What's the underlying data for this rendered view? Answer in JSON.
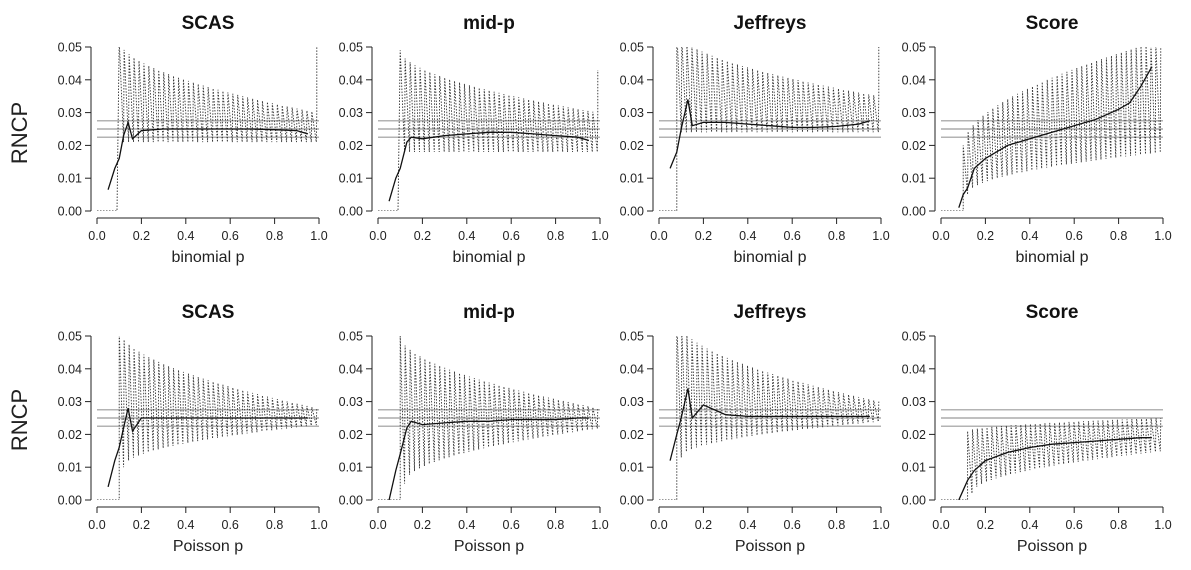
{
  "figure": {
    "ylabel": "RNCP",
    "row_xlabels": [
      "binomial p",
      "Poisson p"
    ]
  },
  "reference_lines": [
    0.0225,
    0.025,
    0.0275
  ],
  "chart_data": [
    {
      "type": "line",
      "row": "binomial",
      "title": "SCAS",
      "xlabel": "binomial p",
      "ylabel": "RNCP",
      "xlim": [
        0,
        1
      ],
      "ylim": [
        0,
        0.05
      ],
      "xticks": [
        "0.0",
        "0.2",
        "0.4",
        "0.6",
        "0.8",
        "1.0"
      ],
      "yticks": [
        "0.00",
        "0.01",
        "0.02",
        "0.03",
        "0.04",
        "0.05"
      ],
      "series": [
        {
          "style": "solid",
          "x": [
            0.05,
            0.08,
            0.1,
            0.12,
            0.14,
            0.16,
            0.2,
            0.3,
            0.4,
            0.5,
            0.6,
            0.7,
            0.8,
            0.9,
            0.95
          ],
          "y": [
            0.0065,
            0.013,
            0.016,
            0.023,
            0.027,
            0.022,
            0.0245,
            0.025,
            0.025,
            0.025,
            0.025,
            0.025,
            0.0248,
            0.0245,
            0.0235
          ]
        },
        {
          "style": "dotted",
          "x_start": 0.1,
          "x_end": 0.99,
          "base_start": 0.021,
          "base_end": 0.021,
          "top_start": 0.052,
          "top_end": 0.03,
          "pre_zero_until": 0.09,
          "end_rise": 0.052
        }
      ]
    },
    {
      "type": "line",
      "row": "binomial",
      "title": "mid-p",
      "xlabel": "binomial p",
      "ylabel": "RNCP",
      "xlim": [
        0,
        1
      ],
      "ylim": [
        0,
        0.05
      ],
      "xticks": [
        "0.0",
        "0.2",
        "0.4",
        "0.6",
        "0.8",
        "1.0"
      ],
      "yticks": [
        "0.00",
        "0.01",
        "0.02",
        "0.03",
        "0.04",
        "0.05"
      ],
      "series": [
        {
          "style": "solid",
          "x": [
            0.05,
            0.08,
            0.1,
            0.13,
            0.15,
            0.2,
            0.3,
            0.4,
            0.5,
            0.6,
            0.7,
            0.8,
            0.9,
            0.95
          ],
          "y": [
            0.003,
            0.01,
            0.013,
            0.021,
            0.0225,
            0.022,
            0.023,
            0.0235,
            0.024,
            0.024,
            0.0235,
            0.023,
            0.0225,
            0.0215
          ]
        },
        {
          "style": "dotted",
          "x_start": 0.1,
          "x_end": 0.99,
          "base_start": 0.018,
          "base_end": 0.018,
          "top_start": 0.049,
          "top_end": 0.03,
          "pre_zero_until": 0.09,
          "end_rise": 0.043
        }
      ]
    },
    {
      "type": "line",
      "row": "binomial",
      "title": "Jeffreys",
      "xlabel": "binomial p",
      "ylabel": "RNCP",
      "xlim": [
        0,
        1
      ],
      "ylim": [
        0,
        0.05
      ],
      "xticks": [
        "0.0",
        "0.2",
        "0.4",
        "0.6",
        "0.8",
        "1.0"
      ],
      "yticks": [
        "0.00",
        "0.01",
        "0.02",
        "0.03",
        "0.04",
        "0.05"
      ],
      "series": [
        {
          "style": "solid",
          "x": [
            0.05,
            0.08,
            0.1,
            0.13,
            0.15,
            0.2,
            0.3,
            0.4,
            0.5,
            0.6,
            0.7,
            0.8,
            0.9,
            0.95
          ],
          "y": [
            0.013,
            0.018,
            0.025,
            0.034,
            0.026,
            0.027,
            0.027,
            0.0265,
            0.026,
            0.0255,
            0.0255,
            0.0258,
            0.0265,
            0.0275
          ]
        },
        {
          "style": "dotted",
          "x_start": 0.08,
          "x_end": 0.99,
          "base_start": 0.024,
          "base_end": 0.024,
          "top_start": 0.055,
          "top_end": 0.035,
          "pre_zero_until": 0.08,
          "end_rise": 0.052
        }
      ]
    },
    {
      "type": "line",
      "row": "binomial",
      "title": "Score",
      "xlabel": "binomial p",
      "ylabel": "RNCP",
      "xlim": [
        0,
        1
      ],
      "ylim": [
        0,
        0.05
      ],
      "xticks": [
        "0.0",
        "0.2",
        "0.4",
        "0.6",
        "0.8",
        "1.0"
      ],
      "yticks": [
        "0.00",
        "0.01",
        "0.02",
        "0.03",
        "0.04",
        "0.05"
      ],
      "series": [
        {
          "style": "solid",
          "x": [
            0.08,
            0.1,
            0.12,
            0.15,
            0.2,
            0.3,
            0.4,
            0.5,
            0.6,
            0.7,
            0.8,
            0.85,
            0.9,
            0.95
          ],
          "y": [
            0.001,
            0.005,
            0.007,
            0.013,
            0.016,
            0.02,
            0.022,
            0.024,
            0.026,
            0.028,
            0.031,
            0.033,
            0.038,
            0.044
          ]
        },
        {
          "style": "dotted",
          "x_start": 0.1,
          "x_end": 0.99,
          "base_start": 0.005,
          "base_end": 0.018,
          "top_start": 0.02,
          "top_end": 0.052,
          "pre_zero_until": 0.1,
          "end_rise": 0.052
        }
      ]
    },
    {
      "type": "line",
      "row": "poisson",
      "title": "SCAS",
      "xlabel": "Poisson p",
      "ylabel": "RNCP",
      "xlim": [
        0,
        1
      ],
      "ylim": [
        0,
        0.05
      ],
      "xticks": [
        "0.0",
        "0.2",
        "0.4",
        "0.6",
        "0.8",
        "1.0"
      ],
      "yticks": [
        "0.00",
        "0.01",
        "0.02",
        "0.03",
        "0.04",
        "0.05"
      ],
      "series": [
        {
          "style": "solid",
          "x": [
            0.05,
            0.08,
            0.1,
            0.12,
            0.14,
            0.16,
            0.2,
            0.3,
            0.4,
            0.5,
            0.6,
            0.7,
            0.8,
            0.9,
            0.95
          ],
          "y": [
            0.004,
            0.012,
            0.016,
            0.022,
            0.028,
            0.021,
            0.025,
            0.025,
            0.025,
            0.025,
            0.025,
            0.025,
            0.025,
            0.025,
            0.025
          ]
        },
        {
          "style": "dotted",
          "x_start": 0.1,
          "x_end": 0.99,
          "base_start": 0.01,
          "base_end": 0.023,
          "top_start": 0.052,
          "top_end": 0.028,
          "pre_zero_until": 0.1,
          "end_rise": 0.028
        }
      ]
    },
    {
      "type": "line",
      "row": "poisson",
      "title": "mid-p",
      "xlabel": "Poisson p",
      "ylabel": "RNCP",
      "xlim": [
        0,
        1
      ],
      "ylim": [
        0,
        0.05
      ],
      "xticks": [
        "0.0",
        "0.2",
        "0.4",
        "0.6",
        "0.8",
        "1.0"
      ],
      "yticks": [
        "0.00",
        "0.01",
        "0.02",
        "0.03",
        "0.04",
        "0.05"
      ],
      "series": [
        {
          "style": "solid",
          "x": [
            0.05,
            0.08,
            0.1,
            0.13,
            0.15,
            0.2,
            0.3,
            0.4,
            0.5,
            0.6,
            0.7,
            0.8,
            0.9,
            0.95
          ],
          "y": [
            0.0,
            0.009,
            0.014,
            0.022,
            0.024,
            0.023,
            0.0235,
            0.024,
            0.024,
            0.0245,
            0.0245,
            0.0245,
            0.025,
            0.025
          ]
        },
        {
          "style": "dotted",
          "x_start": 0.1,
          "x_end": 0.99,
          "base_start": 0.005,
          "base_end": 0.022,
          "top_start": 0.05,
          "top_end": 0.028,
          "pre_zero_until": 0.1,
          "end_rise": 0.028
        }
      ]
    },
    {
      "type": "line",
      "row": "poisson",
      "title": "Jeffreys",
      "xlabel": "Poisson p",
      "ylabel": "RNCP",
      "xlim": [
        0,
        1
      ],
      "ylim": [
        0,
        0.05
      ],
      "xticks": [
        "0.0",
        "0.2",
        "0.4",
        "0.6",
        "0.8",
        "1.0"
      ],
      "yticks": [
        "0.00",
        "0.01",
        "0.02",
        "0.03",
        "0.04",
        "0.05"
      ],
      "series": [
        {
          "style": "solid",
          "x": [
            0.05,
            0.08,
            0.1,
            0.13,
            0.15,
            0.2,
            0.3,
            0.4,
            0.5,
            0.6,
            0.7,
            0.8,
            0.9,
            0.95
          ],
          "y": [
            0.012,
            0.02,
            0.025,
            0.034,
            0.025,
            0.029,
            0.026,
            0.0255,
            0.0255,
            0.0255,
            0.0255,
            0.0255,
            0.0255,
            0.0255
          ]
        },
        {
          "style": "dotted",
          "x_start": 0.08,
          "x_end": 0.99,
          "base_start": 0.013,
          "base_end": 0.024,
          "top_start": 0.055,
          "top_end": 0.03,
          "pre_zero_until": 0.08,
          "end_rise": 0.03
        }
      ]
    },
    {
      "type": "line",
      "row": "poisson",
      "title": "Score",
      "xlabel": "Poisson p",
      "ylabel": "RNCP",
      "xlim": [
        0,
        1
      ],
      "ylim": [
        0,
        0.05
      ],
      "xticks": [
        "0.0",
        "0.2",
        "0.4",
        "0.6",
        "0.8",
        "1.0"
      ],
      "yticks": [
        "0.00",
        "0.01",
        "0.02",
        "0.03",
        "0.04",
        "0.05"
      ],
      "series": [
        {
          "style": "solid",
          "x": [
            0.08,
            0.1,
            0.12,
            0.15,
            0.2,
            0.3,
            0.4,
            0.5,
            0.6,
            0.7,
            0.8,
            0.9,
            0.95
          ],
          "y": [
            0.0,
            0.003,
            0.006,
            0.009,
            0.012,
            0.0145,
            0.016,
            0.017,
            0.0175,
            0.018,
            0.0185,
            0.019,
            0.019
          ]
        },
        {
          "style": "dotted",
          "x_start": 0.12,
          "x_end": 0.99,
          "base_start": 0.002,
          "base_end": 0.015,
          "top_start": 0.021,
          "top_end": 0.025,
          "pre_zero_until": 0.12,
          "end_rise": 0.025
        }
      ]
    }
  ]
}
